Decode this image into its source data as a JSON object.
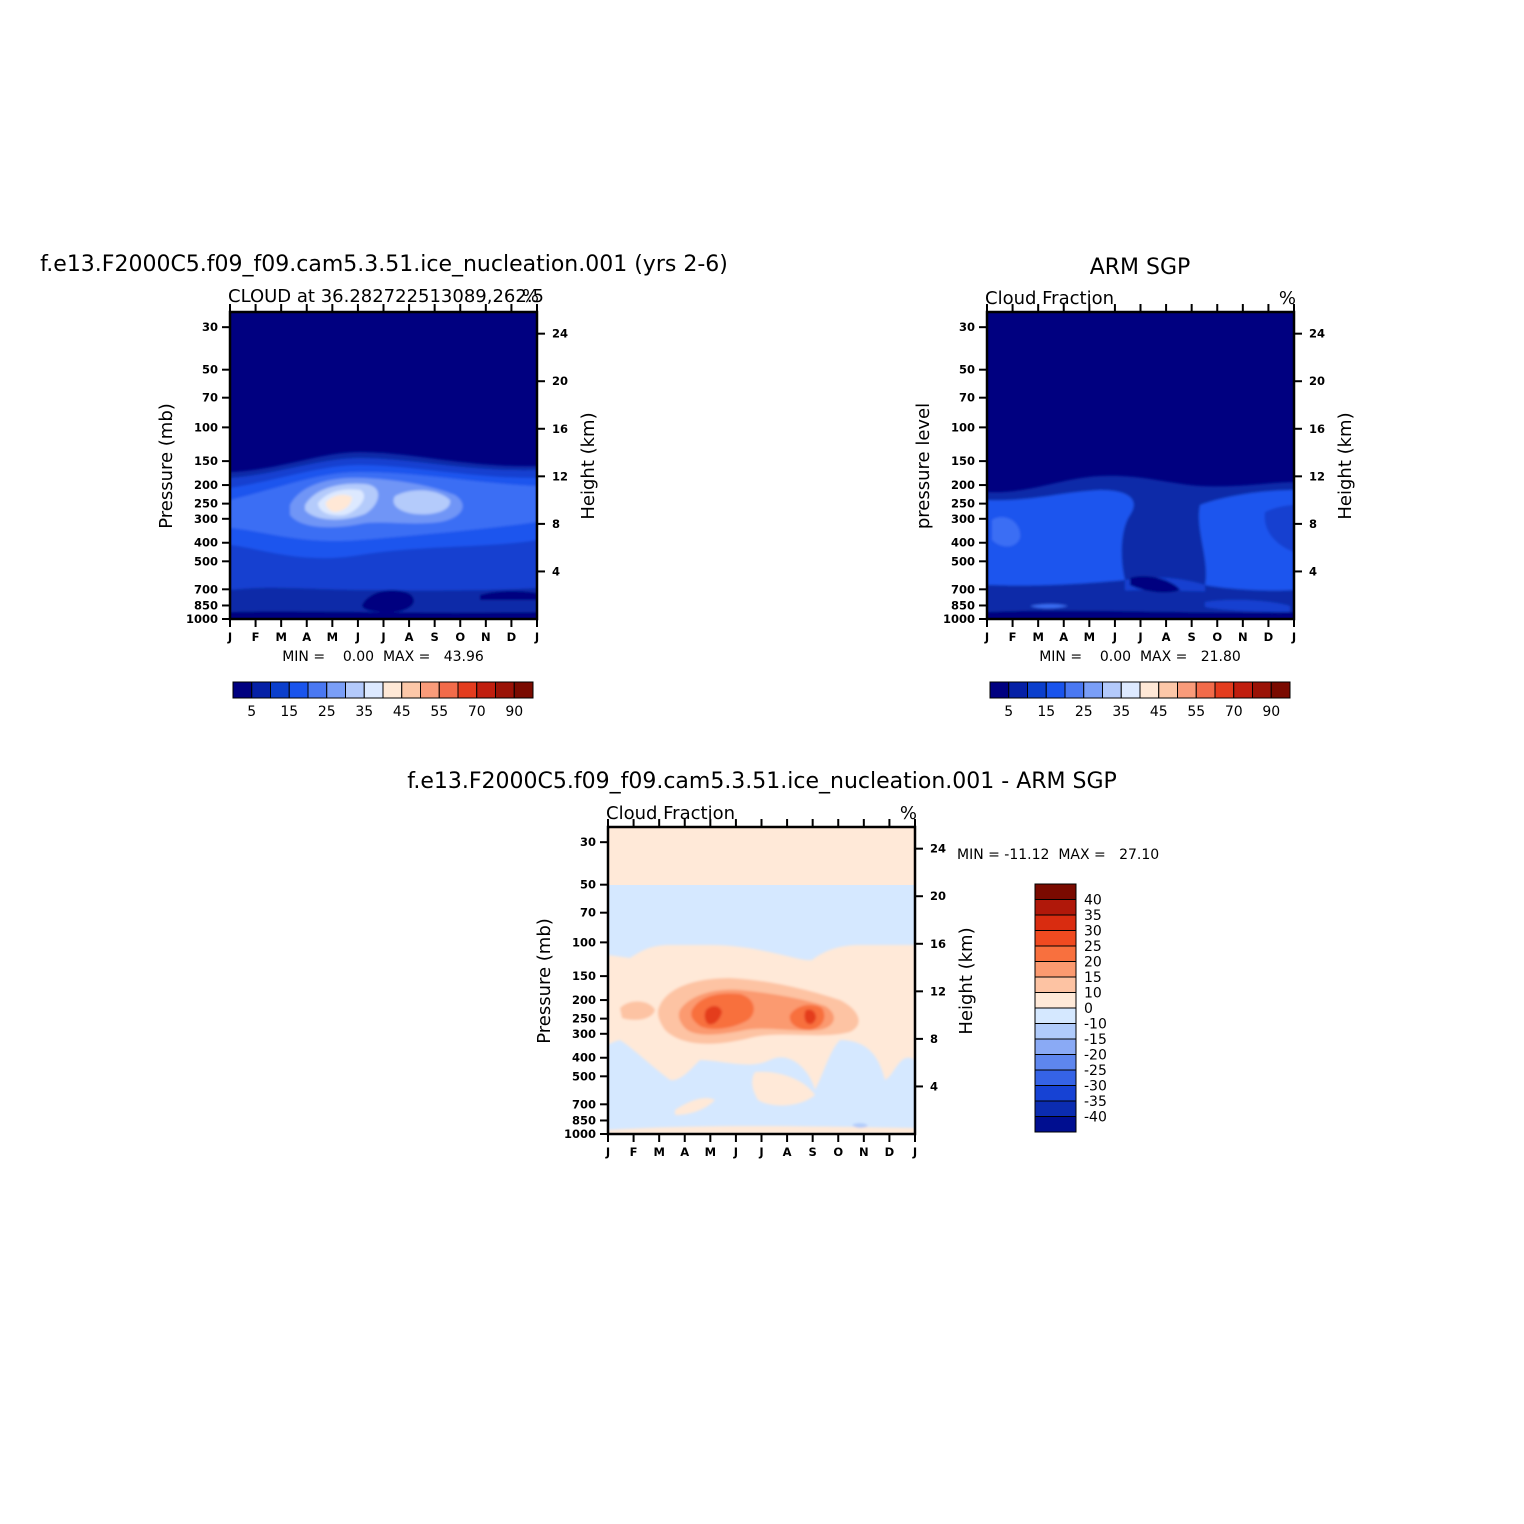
{
  "figure": {
    "main_title": "f.e13.F2000C5.f09_f09.cam5.3.51.ice_nucleation.001 (yrs 2-6)",
    "obs_title": "ARM SGP",
    "diff_title": "f.e13.F2000C5.f09_f09.cam5.3.51.ice_nucleation.001 - ARM SGP"
  },
  "chart_data": [
    {
      "type": "heatmap",
      "panel": "model",
      "title": "",
      "left_string": "CLOUD at 36.282722513089,262.5",
      "right_string": "%",
      "ylabel": "Pressure (mb)",
      "ylabel_right": "Height (km)",
      "xlabel": "",
      "x_ticks": [
        "J",
        "F",
        "M",
        "A",
        "M",
        "J",
        "J",
        "A",
        "S",
        "O",
        "N",
        "D",
        "J"
      ],
      "y_ticks": [
        30,
        50,
        70,
        100,
        150,
        200,
        250,
        300,
        400,
        500,
        700,
        850,
        1000
      ],
      "y_right_ticks": [
        24,
        20,
        16,
        12,
        8,
        4
      ],
      "y_scale": "log",
      "ylim": [
        1000,
        25
      ],
      "stats_text": "MIN =    0.00  MAX =   43.96",
      "min": 0.0,
      "max": 43.96,
      "colorbar": {
        "orientation": "horizontal",
        "labels": [
          "5",
          "15",
          "25",
          "35",
          "45",
          "55",
          "70",
          "90"
        ],
        "colors": [
          "#000080",
          "#0520a6",
          "#0b3fcc",
          "#1a54ec",
          "#4a78f2",
          "#7a9ef7",
          "#b3c9fb",
          "#dde9ff",
          "#ffe8d6",
          "#fcc7a8",
          "#f99b7a",
          "#f26b4a",
          "#e43c1e",
          "#c01e0e",
          "#9a1206",
          "#7a0a00"
        ]
      }
    },
    {
      "type": "heatmap",
      "panel": "observation",
      "title": "ARM SGP",
      "left_string": "Cloud Fraction",
      "right_string": "%",
      "ylabel": "pressure level",
      "ylabel_right": "Height (km)",
      "xlabel": "",
      "x_ticks": [
        "J",
        "F",
        "M",
        "A",
        "M",
        "J",
        "J",
        "A",
        "S",
        "O",
        "N",
        "D",
        "J"
      ],
      "y_ticks": [
        30,
        50,
        70,
        100,
        150,
        200,
        250,
        300,
        400,
        500,
        700,
        850,
        1000
      ],
      "y_right_ticks": [
        24,
        20,
        16,
        12,
        8,
        4
      ],
      "y_scale": "log",
      "ylim": [
        1000,
        25
      ],
      "stats_text": "MIN =    0.00  MAX =   21.80",
      "min": 0.0,
      "max": 21.8,
      "colorbar": {
        "orientation": "horizontal",
        "labels": [
          "5",
          "15",
          "25",
          "35",
          "45",
          "55",
          "70",
          "90"
        ],
        "colors": [
          "#000080",
          "#0520a6",
          "#0b3fcc",
          "#1a54ec",
          "#4a78f2",
          "#7a9ef7",
          "#b3c9fb",
          "#dde9ff",
          "#ffe8d6",
          "#fcc7a8",
          "#f99b7a",
          "#f26b4a",
          "#e43c1e",
          "#c01e0e",
          "#9a1206",
          "#7a0a00"
        ]
      }
    },
    {
      "type": "heatmap",
      "panel": "difference",
      "title": "f.e13.F2000C5.f09_f09.cam5.3.51.ice_nucleation.001 - ARM SGP",
      "left_string": "Cloud Fraction",
      "right_string": "%",
      "ylabel": "Pressure (mb)",
      "ylabel_right": "Height (km)",
      "xlabel": "",
      "x_ticks": [
        "J",
        "F",
        "M",
        "A",
        "M",
        "J",
        "J",
        "A",
        "S",
        "O",
        "N",
        "D",
        "J"
      ],
      "y_ticks": [
        30,
        50,
        70,
        100,
        150,
        200,
        250,
        300,
        400,
        500,
        700,
        850,
        1000
      ],
      "y_right_ticks": [
        24,
        20,
        16,
        12,
        8,
        4
      ],
      "y_scale": "log",
      "ylim": [
        1000,
        25
      ],
      "stats_text": "MIN = -11.12  MAX =   27.10",
      "min": -11.12,
      "max": 27.1,
      "colorbar": {
        "orientation": "vertical",
        "labels": [
          "40",
          "35",
          "30",
          "25",
          "20",
          "15",
          "10",
          "0",
          "-10",
          "-15",
          "-20",
          "-25",
          "-30",
          "-35",
          "-40"
        ],
        "colors": [
          "#7a0a00",
          "#b0180a",
          "#d92c10",
          "#f04a20",
          "#f8703e",
          "#fb9a70",
          "#fdc3a3",
          "#ffe9d8",
          "#d5e8ff",
          "#b0cbfb",
          "#8aaaf5",
          "#5e86ee",
          "#3563e6",
          "#1642d4",
          "#0b2cb0",
          "#000e90"
        ]
      }
    }
  ]
}
